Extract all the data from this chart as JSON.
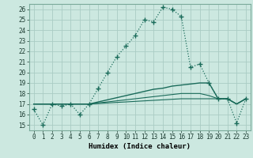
{
  "title": "",
  "xlabel": "Humidex (Indice chaleur)",
  "xlim": [
    -0.5,
    23.5
  ],
  "ylim": [
    14.5,
    26.5
  ],
  "xtick_labels": [
    "0",
    "1",
    "2",
    "3",
    "4",
    "5",
    "6",
    "7",
    "8",
    "9",
    "10",
    "11",
    "12",
    "13",
    "14",
    "15",
    "16",
    "17",
    "18",
    "19",
    "20",
    "21",
    "22",
    "23"
  ],
  "ytick_labels": [
    "15",
    "16",
    "17",
    "18",
    "19",
    "20",
    "21",
    "22",
    "23",
    "24",
    "25",
    "26"
  ],
  "bg_color": "#cce8e0",
  "grid_color": "#aaccC4",
  "line_color": "#1a6b5a",
  "series1_y": [
    16.5,
    15.0,
    17.0,
    16.8,
    17.0,
    16.0,
    17.0,
    18.5,
    20.0,
    21.5,
    22.5,
    23.5,
    25.0,
    24.8,
    26.2,
    26.0,
    25.3,
    20.5,
    20.8,
    19.0,
    17.5,
    17.5,
    15.2,
    17.5
  ],
  "series2_y": [
    17.0,
    17.0,
    17.0,
    17.0,
    17.0,
    17.0,
    17.0,
    17.2,
    17.4,
    17.6,
    17.8,
    18.0,
    18.2,
    18.4,
    18.5,
    18.7,
    18.8,
    18.9,
    19.0,
    19.0,
    17.5,
    17.5,
    17.0,
    17.5
  ],
  "series3_y": [
    17.0,
    17.0,
    17.0,
    17.0,
    17.0,
    17.0,
    17.0,
    17.1,
    17.2,
    17.3,
    17.4,
    17.5,
    17.6,
    17.7,
    17.8,
    17.9,
    18.0,
    18.0,
    18.0,
    17.8,
    17.5,
    17.5,
    17.0,
    17.5
  ],
  "series4_y": [
    17.0,
    17.0,
    17.0,
    17.0,
    17.0,
    17.0,
    17.0,
    17.05,
    17.1,
    17.15,
    17.2,
    17.25,
    17.3,
    17.35,
    17.4,
    17.45,
    17.5,
    17.5,
    17.5,
    17.5,
    17.5,
    17.5,
    17.0,
    17.5
  ]
}
